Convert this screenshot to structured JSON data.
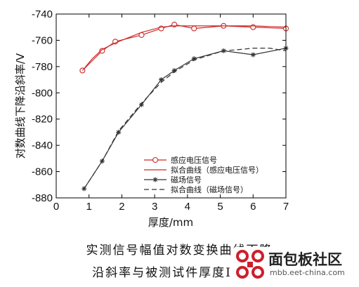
{
  "chart_data": {
    "type": "line",
    "title": "",
    "xlabel": "厚度/mm",
    "ylabel": "对数曲线下降沿斜率/V",
    "xlim": [
      0,
      7
    ],
    "ylim": [
      -880,
      -740
    ],
    "xticks": [
      0,
      1,
      2,
      3,
      4,
      5,
      6,
      7
    ],
    "yticks": [
      -740,
      -760,
      -780,
      -800,
      -820,
      -840,
      -860,
      -880
    ],
    "grid": false,
    "legend_position": "bottom-right",
    "series": [
      {
        "name": "感应电压信号",
        "color": "#cc2a2a",
        "marker": "circle",
        "dash": "none",
        "x": [
          0.8,
          1.4,
          1.8,
          2.6,
          3.2,
          3.6,
          4.2,
          5.1,
          6.0,
          7.0
        ],
        "y": [
          -783,
          -768,
          -761,
          -756,
          -751,
          -748,
          -751,
          -749,
          -750,
          -751
        ]
      },
      {
        "name": "拟合曲线（感应电压信号）",
        "color": "#cc2a2a",
        "marker": "none",
        "dash": "none",
        "x": [
          0.8,
          1.1,
          1.4,
          1.8,
          2.2,
          2.6,
          3.2,
          3.6,
          4.2,
          5.1,
          6.0,
          7.0
        ],
        "y": [
          -783,
          -774,
          -767,
          -762,
          -758,
          -754,
          -750,
          -749,
          -749,
          -749,
          -749,
          -750
        ]
      },
      {
        "name": "磁场信号",
        "color": "#333333",
        "marker": "star",
        "dash": "none",
        "x": [
          0.85,
          1.4,
          1.9,
          2.6,
          3.2,
          3.6,
          4.2,
          5.1,
          6.0,
          7.0
        ],
        "y": [
          -873,
          -852,
          -830,
          -809,
          -790,
          -783,
          -774,
          -768,
          -771,
          -766
        ]
      },
      {
        "name": "拟合曲线（磁场信号）",
        "color": "#333333",
        "marker": "none",
        "dash": "dashed",
        "x": [
          0.85,
          1.4,
          1.9,
          2.6,
          3.2,
          3.6,
          4.2,
          5.1,
          5.6,
          6.0,
          6.5,
          7.0
        ],
        "y": [
          -873,
          -852,
          -829,
          -808,
          -792,
          -784,
          -775,
          -768,
          -767,
          -766,
          -766,
          -768
        ]
      }
    ]
  },
  "caption": {
    "line1": "实测信号幅值对数变换曲线下降",
    "line2": "沿斜率与被测试件厚度I"
  },
  "watermark": {
    "title": "面包板社区",
    "url": "mbb.eet-china.com",
    "logo_color": "#cc1f2d"
  }
}
